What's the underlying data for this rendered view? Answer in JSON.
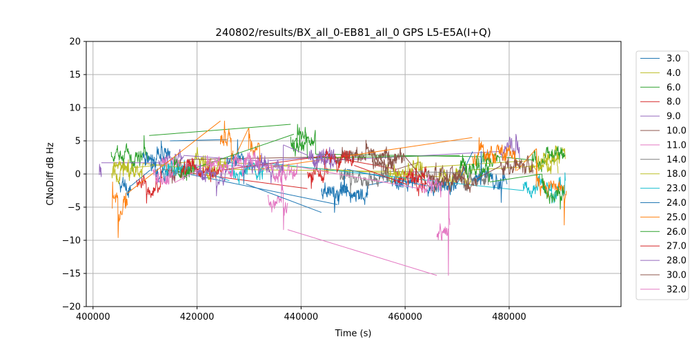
{
  "chart_data": {
    "type": "line",
    "title": "240802/results/BX_all_0-EB81_all_0 GPS L5-E5A(I+Q)",
    "xlabel": "Time (s)",
    "ylabel": "CNoDiff dB Hz",
    "xlim": [
      398700,
      501500
    ],
    "ylim": [
      -20,
      20
    ],
    "xticks": [
      400000,
      420000,
      440000,
      460000,
      480000
    ],
    "xtick_labels": [
      "400000",
      "420000",
      "440000",
      "460000",
      "480000"
    ],
    "yticks": [
      -20,
      -15,
      -10,
      -5,
      0,
      5,
      10,
      15,
      20
    ],
    "ytick_labels": [
      "−20",
      "−15",
      "−10",
      "−5",
      "0",
      "5",
      "10",
      "15",
      "20"
    ],
    "grid": true,
    "legend_position": "right outside",
    "series": [
      {
        "name": "3.0",
        "color": "#1f77b4",
        "segments": [
          [
            405000,
            407300
          ],
          [
            411000,
            414500
          ],
          [
            447000,
            452800
          ],
          [
            457200,
            462300
          ]
        ],
        "points": [
          [
            405200,
            -1.8
          ],
          [
            409800,
            2.2
          ],
          [
            414200,
            0.6
          ],
          [
            447200,
            -4.6
          ],
          [
            452700,
            -1.7
          ],
          [
            457300,
            -1.0
          ],
          [
            462200,
            -1.5
          ]
        ]
      },
      {
        "name": "4.0",
        "color": "#bcbd22",
        "segments": [
          [
            403600,
            407200
          ],
          [
            419200,
            423000
          ],
          [
            466500,
            472700
          ],
          [
            485500,
            490800
          ]
        ],
        "points": [
          [
            403700,
            -0.6
          ],
          [
            407200,
            0.9
          ],
          [
            419000,
            -3.0
          ],
          [
            419500,
            1.9
          ],
          [
            466800,
            -0.4
          ],
          [
            472700,
            0.6
          ],
          [
            485500,
            1.2
          ],
          [
            490700,
            3.0
          ]
        ]
      },
      {
        "name": "6.0",
        "color": "#2ca02c",
        "segments": [
          [
            403500,
            410800
          ],
          [
            438000,
            442800
          ],
          [
            474600,
            478200
          ],
          [
            484400,
            490800
          ]
        ],
        "points": [
          [
            403600,
            2.6
          ],
          [
            407600,
            0.4
          ],
          [
            409800,
            5.8
          ],
          [
            439300,
            7.5
          ],
          [
            442800,
            3.0
          ],
          [
            477800,
            2.6
          ],
          [
            485000,
            2.1
          ],
          [
            488900,
            3.2
          ]
        ]
      },
      {
        "name": "8.0",
        "color": "#d62728",
        "segments": [
          [
            408400,
            413300
          ],
          [
            441200,
            445200
          ],
          [
            457900,
            464000
          ]
        ],
        "points": [
          [
            408500,
            -1.5
          ],
          [
            410300,
            -4.4
          ],
          [
            413000,
            0.7
          ],
          [
            442000,
            -2.2
          ],
          [
            444600,
            2.6
          ],
          [
            458200,
            0.8
          ],
          [
            463300,
            -2.8
          ]
        ]
      },
      {
        "name": "9.0",
        "color": "#9467bd",
        "segments": [
          [
            401200,
            401600
          ],
          [
            412600,
            417400
          ],
          [
            431600,
            433800
          ],
          [
            442000,
            447200
          ],
          [
            478300,
            482000
          ]
        ],
        "points": [
          [
            412700,
            1.7
          ],
          [
            414500,
            2.8
          ],
          [
            431800,
            2.0
          ],
          [
            434200,
            -0.8
          ],
          [
            443000,
            2.5
          ],
          [
            447000,
            2.1
          ],
          [
            480700,
            3.4
          ],
          [
            481300,
            6.0
          ],
          [
            482000,
            2.3
          ]
        ]
      },
      {
        "name": "10.0",
        "color": "#8c564b",
        "segments": [
          [
            413600,
            418500
          ],
          [
            446800,
            458300
          ],
          [
            462800,
            471800
          ]
        ],
        "points": [
          [
            413600,
            1.5
          ],
          [
            415200,
            -1.4
          ],
          [
            418400,
            2.2
          ],
          [
            448000,
            2.6
          ],
          [
            452500,
            5.1
          ],
          [
            457300,
            0.7
          ],
          [
            462800,
            1.8
          ],
          [
            466000,
            -2.5
          ],
          [
            471700,
            0.2
          ]
        ]
      },
      {
        "name": "11.0",
        "color": "#e377c2",
        "segments": [
          [
            413300,
            418100
          ],
          [
            433600,
            437400
          ],
          [
            466100,
            468600
          ]
        ],
        "points": [
          [
            413300,
            2.5
          ],
          [
            416100,
            0.1
          ],
          [
            418100,
            1.3
          ],
          [
            436600,
            -8.4
          ],
          [
            436300,
            1.2
          ],
          [
            468300,
            -15.3
          ],
          [
            468400,
            -2.0
          ]
        ]
      },
      {
        "name": "14.0",
        "color": "#7f7f7f",
        "segments": [
          [
            447400,
            456800
          ],
          [
            471000,
            476000
          ]
        ],
        "points": [
          [
            447400,
            0.6
          ],
          [
            449500,
            -2.9
          ],
          [
            451600,
            -1.7
          ],
          [
            456700,
            0.4
          ],
          [
            471100,
            0.2
          ],
          [
            475900,
            -1.2
          ]
        ]
      },
      {
        "name": "18.0",
        "color": "#bcbd22",
        "segments": [
          [
            403800,
            409600
          ],
          [
            420600,
            425600
          ],
          [
            456500,
            463300
          ],
          [
            483800,
            489400
          ]
        ],
        "points": [
          [
            403900,
            1.2
          ],
          [
            406900,
            -0.4
          ],
          [
            409600,
            1.6
          ],
          [
            423100,
            0.7
          ],
          [
            456600,
            0.4
          ],
          [
            460100,
            1.0
          ],
          [
            486700,
            2.0
          ],
          [
            489400,
            0.1
          ]
        ]
      },
      {
        "name": "23.0",
        "color": "#17becf",
        "segments": [
          [
            413500,
            418600
          ],
          [
            426200,
            432700
          ],
          [
            482700,
            490800
          ]
        ],
        "points": [
          [
            413800,
            1.3
          ],
          [
            416800,
            0.3
          ],
          [
            418500,
            1.0
          ],
          [
            427900,
            -1.0
          ],
          [
            432600,
            1.7
          ],
          [
            482800,
            -2.5
          ],
          [
            488200,
            -4.4
          ],
          [
            490700,
            0.2
          ]
        ]
      },
      {
        "name": "24.0",
        "color": "#1f77b4",
        "segments": [
          [
            409600,
            414800
          ],
          [
            425700,
            429400
          ],
          [
            443900,
            448800
          ],
          [
            464200,
            469800
          ],
          [
            473000,
            479600
          ]
        ],
        "points": [
          [
            411200,
            1.3
          ],
          [
            413100,
            5.0
          ],
          [
            427800,
            5.2
          ],
          [
            429000,
            -1.5
          ],
          [
            446400,
            -5.8
          ],
          [
            448300,
            0.7
          ],
          [
            464000,
            -7.8
          ],
          [
            468100,
            -1.8
          ],
          [
            474600,
            3.4
          ],
          [
            478500,
            -4.3
          ]
        ]
      },
      {
        "name": "25.0",
        "color": "#ff7f0e",
        "segments": [
          [
            403700,
            406600
          ],
          [
            424500,
            426900
          ],
          [
            429900,
            432300
          ],
          [
            472900,
            481500
          ],
          [
            485200,
            491000
          ]
        ],
        "points": [
          [
            403800,
            -1.2
          ],
          [
            404800,
            -9.6
          ],
          [
            406300,
            -2.9
          ],
          [
            425300,
            8.0
          ],
          [
            426600,
            1.9
          ],
          [
            430000,
            6.9
          ],
          [
            432100,
            0.8
          ],
          [
            474200,
            5.5
          ],
          [
            477300,
            2.4
          ],
          [
            481300,
            0.5
          ],
          [
            485300,
            3.8
          ],
          [
            490600,
            -7.7
          ]
        ]
      },
      {
        "name": "26.0",
        "color": "#2ca02c",
        "segments": [
          [
            415500,
            419600
          ],
          [
            438600,
            441200
          ],
          [
            470500,
            476300
          ],
          [
            486300,
            490600
          ]
        ],
        "points": [
          [
            415900,
            1.8
          ],
          [
            417600,
            -0.7
          ],
          [
            419600,
            0.9
          ],
          [
            439700,
            6.0
          ],
          [
            441200,
            2.4
          ],
          [
            473800,
            2.8
          ],
          [
            476100,
            -1.2
          ],
          [
            486300,
            0.0
          ],
          [
            489800,
            -5.3
          ]
        ]
      },
      {
        "name": "27.0",
        "color": "#d62728",
        "segments": [
          [
            416900,
            424800
          ],
          [
            444400,
            450200
          ],
          [
            460400,
            464000
          ]
        ],
        "points": [
          [
            416900,
            -0.6
          ],
          [
            419100,
            2.4
          ],
          [
            424800,
            0.6
          ],
          [
            445200,
            2.7
          ],
          [
            449800,
            1.3
          ],
          [
            460600,
            -1.6
          ],
          [
            463800,
            1.0
          ]
        ]
      },
      {
        "name": "28.0",
        "color": "#9467bd",
        "segments": [
          [
            419800,
            425900
          ],
          [
            429800,
            436600
          ],
          [
            441300,
            446400
          ]
        ],
        "points": [
          [
            419800,
            1.5
          ],
          [
            423700,
            -3.3
          ],
          [
            425800,
            1.9
          ],
          [
            430500,
            0.8
          ],
          [
            434200,
            -1.4
          ],
          [
            436600,
            4.4
          ],
          [
            441600,
            2.8
          ],
          [
            446300,
            2.0
          ]
        ]
      },
      {
        "name": "30.0",
        "color": "#8c564b",
        "segments": [
          [
            453700,
            459800
          ],
          [
            465300,
            473800
          ],
          [
            478300,
            484600
          ]
        ],
        "points": [
          [
            453800,
            3.1
          ],
          [
            456200,
            -0.2
          ],
          [
            459600,
            2.8
          ],
          [
            465600,
            -2.6
          ],
          [
            469800,
            0.3
          ],
          [
            473600,
            -0.7
          ],
          [
            478300,
            1.2
          ],
          [
            482200,
            1.9
          ],
          [
            484600,
            0.6
          ]
        ]
      },
      {
        "name": "32.0",
        "color": "#e377c2",
        "segments": [
          [
            411500,
            415700
          ],
          [
            421700,
            432100
          ],
          [
            434100,
            439300
          ],
          [
            462800,
            467200
          ]
        ],
        "points": [
          [
            411500,
            0.4
          ],
          [
            414300,
            -1.3
          ],
          [
            418200,
            1.4
          ],
          [
            422200,
            1.2
          ],
          [
            427600,
            2.6
          ],
          [
            431900,
            0.4
          ],
          [
            434200,
            1.4
          ],
          [
            436900,
            -0.7
          ],
          [
            439200,
            1.1
          ],
          [
            463000,
            -2.2
          ],
          [
            467000,
            -1.4
          ]
        ]
      }
    ]
  }
}
